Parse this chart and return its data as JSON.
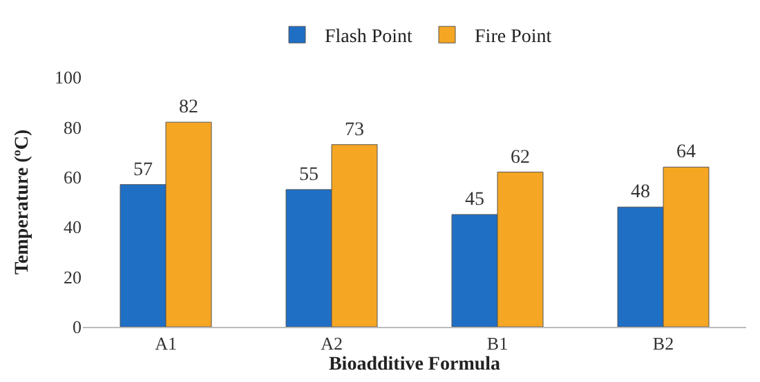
{
  "chart_data": {
    "type": "bar",
    "xlabel": "Bioadditive Formula",
    "ylabel": "Temperature (ºC)",
    "categories": [
      "A1",
      "A2",
      "B1",
      "B2"
    ],
    "series": [
      {
        "name": "Flash Point",
        "color": "#1f6fc5",
        "values": [
          57,
          55,
          45,
          48
        ]
      },
      {
        "name": "Fire Point",
        "color": "#f5a623",
        "values": [
          82,
          73,
          62,
          64
        ]
      }
    ],
    "ylim": [
      0,
      100
    ],
    "yticks": [
      0,
      20,
      40,
      60,
      80,
      100
    ],
    "grid": false,
    "legend": "top",
    "data_labels": true
  }
}
